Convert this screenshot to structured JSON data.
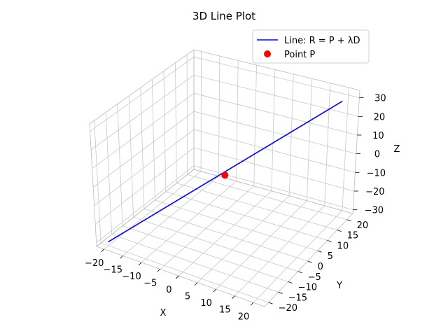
{
  "chart_data": {
    "type": "line3d",
    "title": "3D Line Plot",
    "xlabel": "X",
    "ylabel": "Y",
    "zlabel": "Z",
    "xlim": [
      -22,
      23
    ],
    "ylim": [
      -22,
      23
    ],
    "zlim": [
      -32,
      34
    ],
    "xticks": [
      -20,
      -15,
      -10,
      -5,
      0,
      5,
      10,
      15,
      20
    ],
    "yticks": [
      -20,
      -15,
      -10,
      -5,
      0,
      5,
      10,
      15,
      20
    ],
    "zticks": [
      -30,
      -20,
      -10,
      0,
      10,
      20,
      30
    ],
    "xtick_labels": [
      "−20",
      "−15",
      "−10",
      "−5",
      "0",
      "5",
      "10",
      "15",
      "20"
    ],
    "ytick_labels": [
      "−20",
      "−15",
      "−10",
      "−5",
      "0",
      "5",
      "10",
      "15",
      "20"
    ],
    "ztick_labels": [
      "−30",
      "−20",
      "−10",
      "0",
      "10",
      "20",
      "30"
    ],
    "series": [
      {
        "name": "Line: R = P + λD",
        "kind": "line",
        "color": "#0000ff",
        "x": [
          -20,
          20
        ],
        "y": [
          -20,
          20
        ],
        "z": [
          -30,
          30
        ]
      },
      {
        "name": "Point P",
        "kind": "point",
        "color": "#ff0000",
        "x": [
          0
        ],
        "y": [
          0
        ],
        "z": [
          0
        ]
      }
    ],
    "legend_position": "top-right",
    "grid": true
  }
}
